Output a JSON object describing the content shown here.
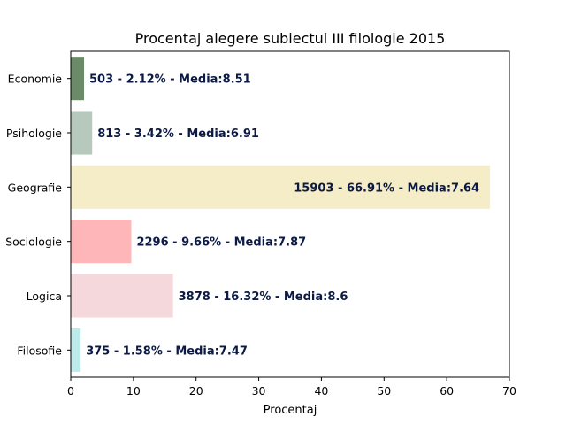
{
  "chart_data": {
    "type": "bar",
    "orientation": "horizontal",
    "title": "Procentaj alegere subiectul III filologie 2015",
    "xlabel": "Procentaj",
    "ylabel": "",
    "xlim": [
      0,
      70
    ],
    "xticks": [
      0,
      10,
      20,
      30,
      40,
      50,
      60,
      70
    ],
    "grid": false,
    "categories": [
      "Economie",
      "Psihologie",
      "Geografie",
      "Sociologie",
      "Logica",
      "Filosofie"
    ],
    "values": [
      2.12,
      3.42,
      66.91,
      9.66,
      16.32,
      1.58
    ],
    "colors": [
      "#6a8a68",
      "#b7c9bd",
      "#f5edc8",
      "#ffb6b8",
      "#f5d8db",
      "#bfeaea"
    ],
    "data_labels": [
      "503 - 2.12% - Media:8.51",
      "813 - 3.42% - Media:6.91",
      "15903 - 66.91% - Media:7.64",
      "2296 - 9.66% - Media:7.87",
      "3878 - 16.32% - Media:8.6",
      "375 - 1.58% - Media:7.47"
    ]
  }
}
